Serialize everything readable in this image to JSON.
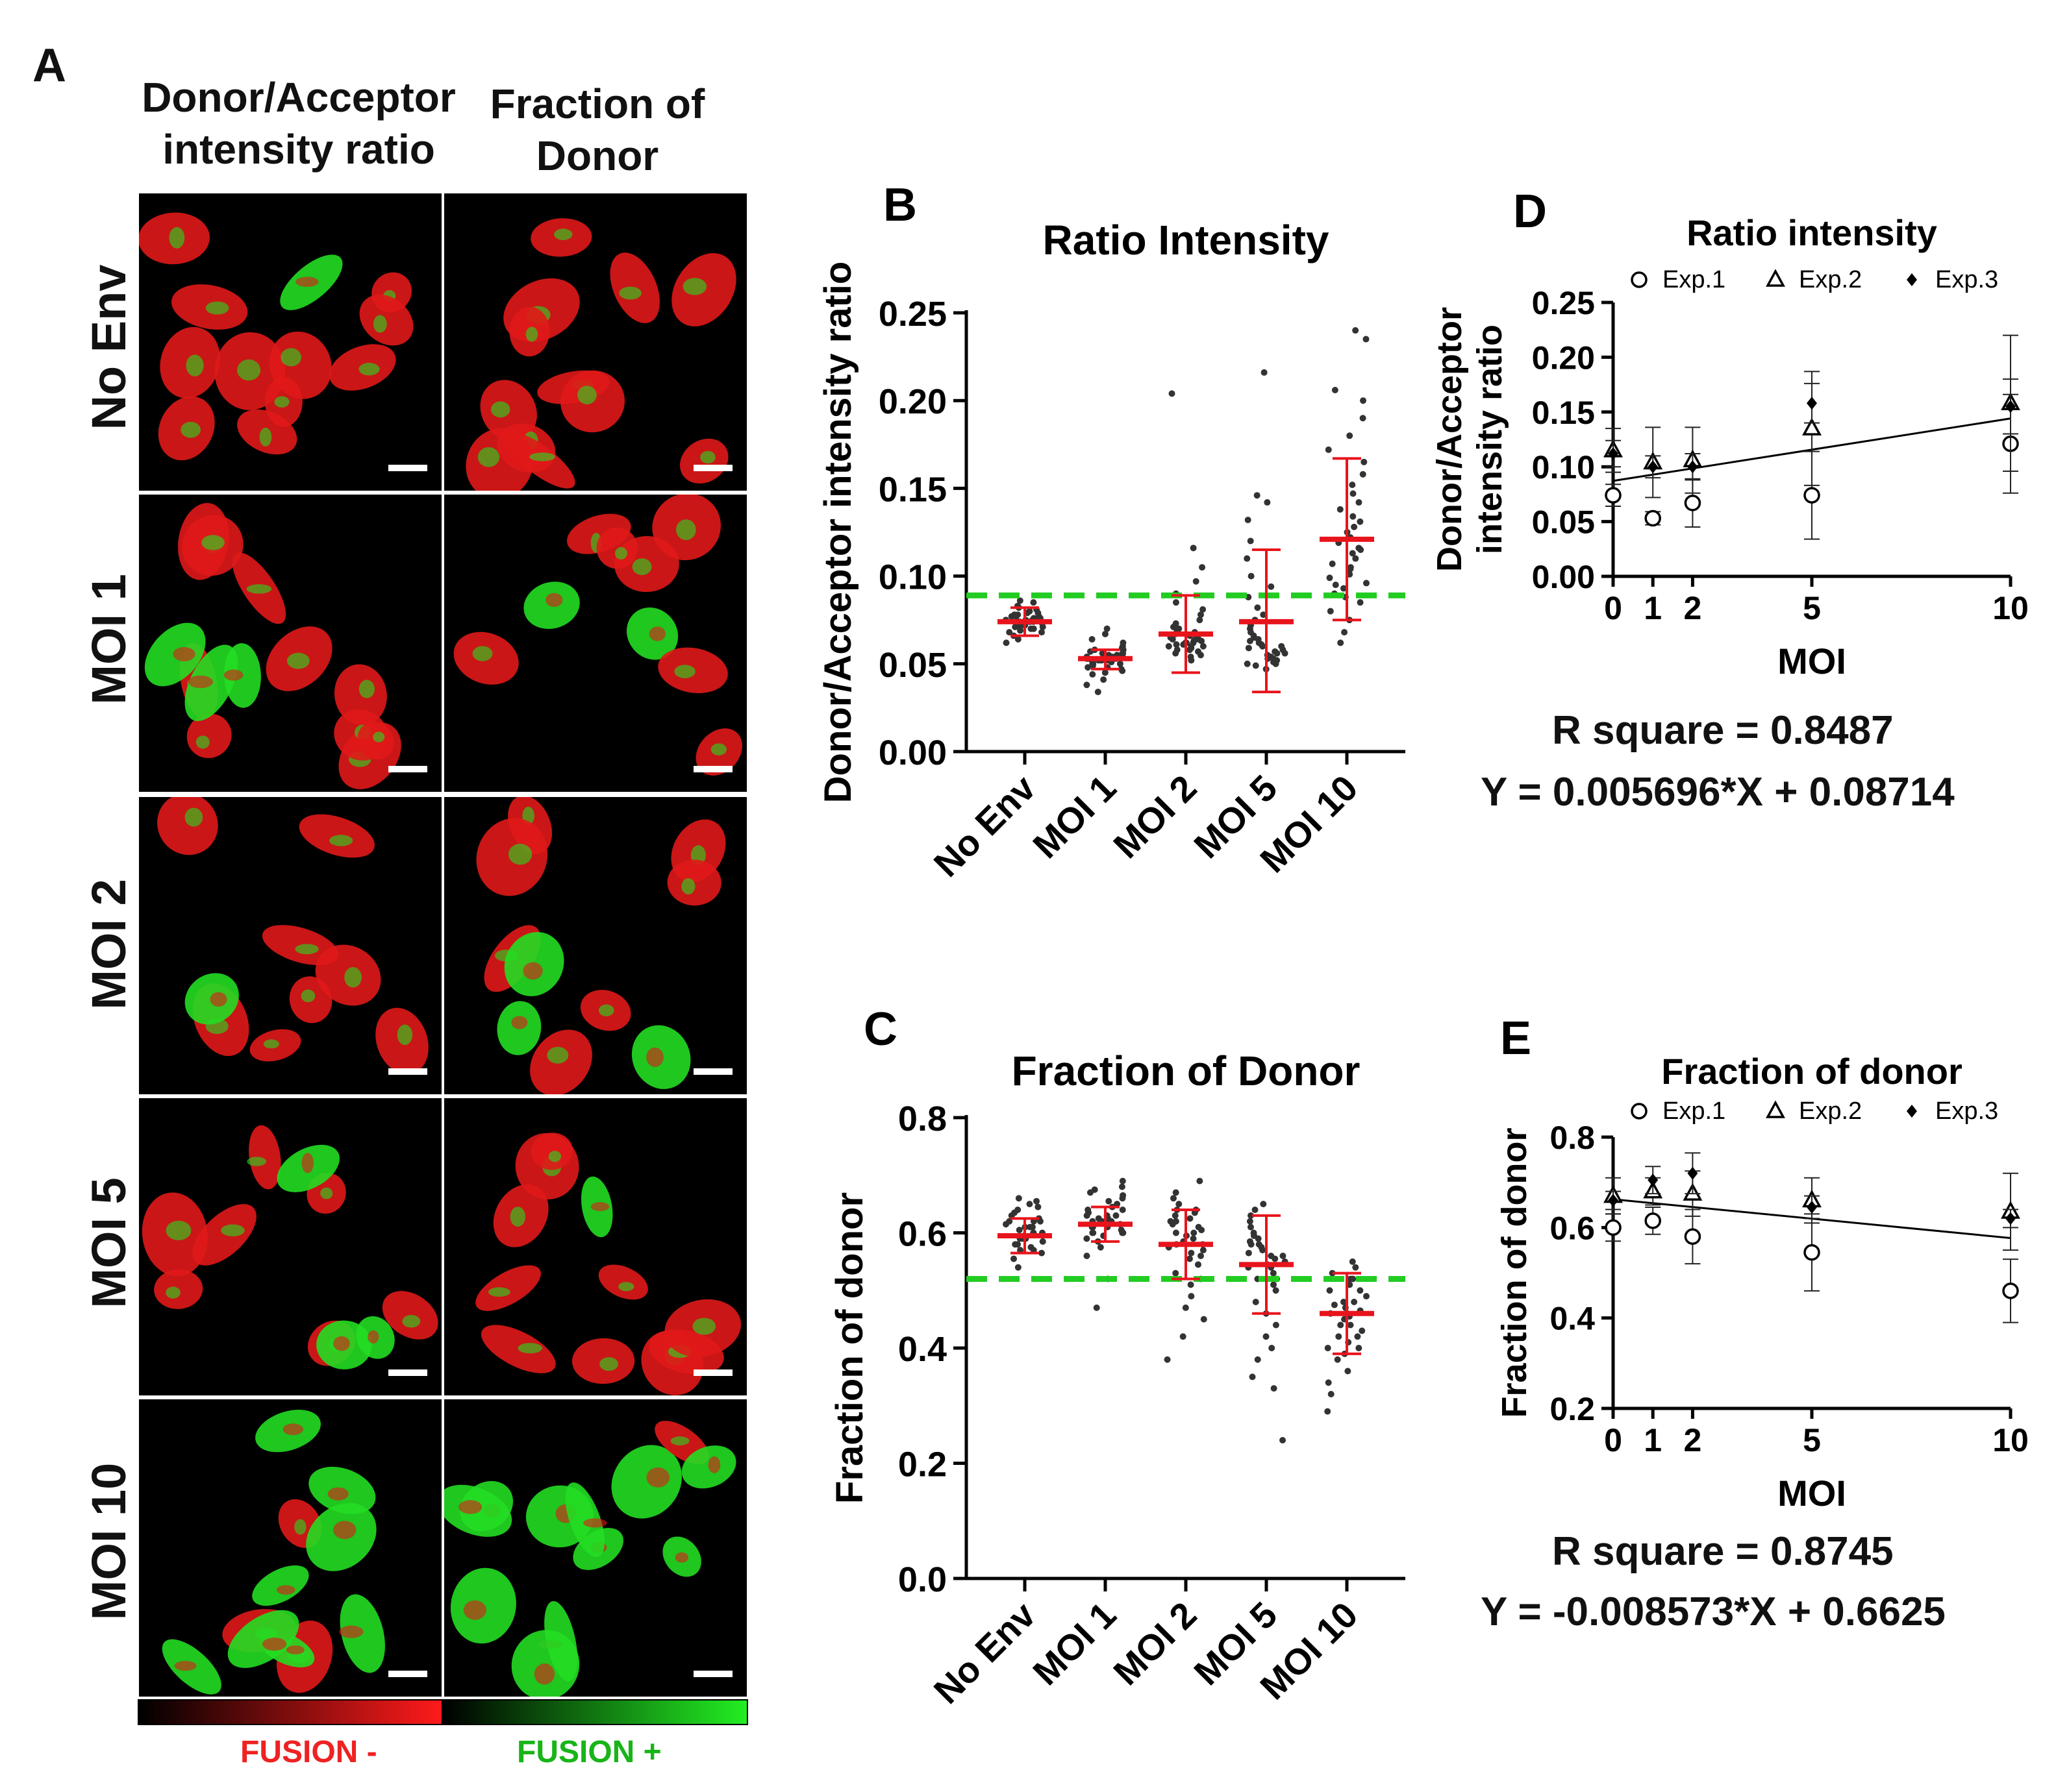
{
  "panel_a": {
    "letter": "A",
    "col_headers": [
      "Donor/Acceptor intensity ratio",
      "Fraction of Donor"
    ],
    "row_labels": [
      "No Env",
      "MOI 1",
      "MOI 2",
      "MOI 5",
      "MOI 10"
    ],
    "colorbar": {
      "left_label": "FUSION -",
      "right_label": "FUSION +",
      "left_color": "#ff2a2a",
      "right_color": "#19c41e"
    }
  },
  "colors": {
    "red_cell": "#e01818",
    "green_cell": "#22dd22",
    "error_bar": "#e8141c",
    "threshold": "#22cc22",
    "dots": "#333333"
  },
  "chart_data": [
    {
      "id": "B",
      "letter": "B",
      "type": "scatter",
      "title": "Ratio Intensity",
      "ylabel": "Donor/Acceptor intensity ratio",
      "categories": [
        "No Env",
        "MOI 1",
        "MOI 2",
        "MOI 5",
        "MOI 10"
      ],
      "ylim": [
        0,
        0.25
      ],
      "yticks": [
        "0.00",
        "0.05",
        "0.10",
        "0.15",
        "0.20",
        "0.25"
      ],
      "threshold": 0.089,
      "summary": [
        {
          "mean": 0.074,
          "low": 0.066,
          "high": 0.082
        },
        {
          "mean": 0.053,
          "low": 0.047,
          "high": 0.058
        },
        {
          "mean": 0.067,
          "low": 0.045,
          "high": 0.089
        },
        {
          "mean": 0.074,
          "low": 0.034,
          "high": 0.115
        },
        {
          "mean": 0.121,
          "low": 0.075,
          "high": 0.167
        }
      ],
      "points": [
        [
          0.064,
          0.066,
          0.068,
          0.069,
          0.07,
          0.071,
          0.071,
          0.072,
          0.072,
          0.073,
          0.073,
          0.074,
          0.074,
          0.074,
          0.075,
          0.075,
          0.076,
          0.076,
          0.077,
          0.077,
          0.078,
          0.078,
          0.079,
          0.08,
          0.081,
          0.082,
          0.083,
          0.085,
          0.068,
          0.07,
          0.072,
          0.075,
          0.077,
          0.079,
          0.062,
          0.086
        ],
        [
          0.034,
          0.038,
          0.041,
          0.044,
          0.046,
          0.047,
          0.048,
          0.049,
          0.05,
          0.05,
          0.051,
          0.051,
          0.052,
          0.052,
          0.053,
          0.053,
          0.053,
          0.054,
          0.054,
          0.055,
          0.055,
          0.056,
          0.056,
          0.057,
          0.058,
          0.059,
          0.06,
          0.062,
          0.064,
          0.067,
          0.07,
          0.048,
          0.05,
          0.052,
          0.054,
          0.056,
          0.058,
          0.045
        ],
        [
          0.052,
          0.054,
          0.055,
          0.056,
          0.057,
          0.058,
          0.059,
          0.06,
          0.06,
          0.061,
          0.061,
          0.062,
          0.062,
          0.063,
          0.063,
          0.064,
          0.064,
          0.065,
          0.066,
          0.067,
          0.068,
          0.069,
          0.07,
          0.071,
          0.073,
          0.075,
          0.078,
          0.081,
          0.085,
          0.09,
          0.097,
          0.105,
          0.116,
          0.204,
          0.058,
          0.06,
          0.062,
          0.064
        ],
        [
          0.047,
          0.049,
          0.05,
          0.051,
          0.052,
          0.053,
          0.054,
          0.055,
          0.056,
          0.057,
          0.058,
          0.059,
          0.06,
          0.061,
          0.062,
          0.063,
          0.064,
          0.065,
          0.066,
          0.068,
          0.07,
          0.072,
          0.075,
          0.078,
          0.082,
          0.088,
          0.094,
          0.1,
          0.11,
          0.12,
          0.132,
          0.142,
          0.146,
          0.216,
          0.05,
          0.053,
          0.056,
          0.06
        ],
        [
          0.062,
          0.068,
          0.075,
          0.08,
          0.085,
          0.088,
          0.09,
          0.093,
          0.096,
          0.099,
          0.101,
          0.104,
          0.107,
          0.11,
          0.113,
          0.116,
          0.119,
          0.122,
          0.125,
          0.128,
          0.131,
          0.134,
          0.138,
          0.142,
          0.147,
          0.152,
          0.158,
          0.165,
          0.172,
          0.18,
          0.19,
          0.2,
          0.206,
          0.235,
          0.24,
          0.095,
          0.105,
          0.115
        ]
      ]
    },
    {
      "id": "C",
      "letter": "C",
      "type": "scatter",
      "title": "Fraction of Donor",
      "ylabel": "Fraction of donor",
      "categories": [
        "No Env",
        "MOI 1",
        "MOI 2",
        "MOI 5",
        "MOI 10"
      ],
      "ylim": [
        0,
        0.8
      ],
      "yticks": [
        "0.0",
        "0.2",
        "0.4",
        "0.6",
        "0.8"
      ],
      "threshold": 0.52,
      "summary": [
        {
          "mean": 0.595,
          "low": 0.565,
          "high": 0.625
        },
        {
          "mean": 0.615,
          "low": 0.585,
          "high": 0.645
        },
        {
          "mean": 0.58,
          "low": 0.52,
          "high": 0.64
        },
        {
          "mean": 0.545,
          "low": 0.46,
          "high": 0.63
        },
        {
          "mean": 0.46,
          "low": 0.39,
          "high": 0.53
        }
      ],
      "points": [
        [
          0.54,
          0.555,
          0.565,
          0.57,
          0.575,
          0.58,
          0.585,
          0.59,
          0.59,
          0.595,
          0.6,
          0.6,
          0.605,
          0.61,
          0.61,
          0.615,
          0.62,
          0.62,
          0.625,
          0.63,
          0.635,
          0.64,
          0.645,
          0.65,
          0.655,
          0.66,
          0.58,
          0.6,
          0.62,
          0.57,
          0.61,
          0.59
        ],
        [
          0.47,
          0.52,
          0.56,
          0.575,
          0.585,
          0.59,
          0.595,
          0.6,
          0.6,
          0.605,
          0.61,
          0.61,
          0.615,
          0.615,
          0.62,
          0.62,
          0.625,
          0.625,
          0.63,
          0.63,
          0.635,
          0.64,
          0.645,
          0.65,
          0.655,
          0.66,
          0.665,
          0.67,
          0.675,
          0.68,
          0.69,
          0.6,
          0.61,
          0.62,
          0.63,
          0.64,
          0.6,
          0.62
        ],
        [
          0.38,
          0.42,
          0.45,
          0.47,
          0.49,
          0.51,
          0.52,
          0.53,
          0.545,
          0.555,
          0.565,
          0.57,
          0.575,
          0.58,
          0.585,
          0.59,
          0.595,
          0.6,
          0.605,
          0.61,
          0.615,
          0.62,
          0.625,
          0.63,
          0.635,
          0.64,
          0.65,
          0.66,
          0.67,
          0.69,
          0.56,
          0.58,
          0.6,
          0.62,
          0.64
        ],
        [
          0.24,
          0.33,
          0.35,
          0.38,
          0.4,
          0.42,
          0.44,
          0.46,
          0.48,
          0.5,
          0.51,
          0.52,
          0.53,
          0.54,
          0.545,
          0.55,
          0.555,
          0.56,
          0.565,
          0.57,
          0.575,
          0.58,
          0.585,
          0.59,
          0.595,
          0.6,
          0.61,
          0.62,
          0.63,
          0.64,
          0.65,
          0.52,
          0.54,
          0.56,
          0.58
        ],
        [
          0.29,
          0.32,
          0.34,
          0.36,
          0.38,
          0.39,
          0.4,
          0.41,
          0.42,
          0.43,
          0.44,
          0.45,
          0.455,
          0.46,
          0.465,
          0.47,
          0.475,
          0.48,
          0.49,
          0.5,
          0.51,
          0.52,
          0.53,
          0.54,
          0.55,
          0.4,
          0.42,
          0.44,
          0.46,
          0.48,
          0.5,
          0.52
        ]
      ]
    },
    {
      "id": "D",
      "letter": "D",
      "type": "scatter",
      "title": "Ratio intensity",
      "ylabel": "Donor/Acceptor intensity ratio",
      "xlabel": "MOI",
      "xticks": [
        0,
        1,
        2,
        5,
        10
      ],
      "xlim": [
        0,
        10
      ],
      "ylim": [
        0,
        0.25
      ],
      "yticks": [
        "0.00",
        "0.05",
        "0.10",
        "0.15",
        "0.20",
        "0.25"
      ],
      "legend": [
        "Exp.1",
        "Exp.2",
        "Exp.3"
      ],
      "series": [
        {
          "name": "Exp.1",
          "marker": "circle",
          "x": [
            0,
            1,
            2,
            5,
            10
          ],
          "y": [
            0.074,
            0.053,
            0.067,
            0.074,
            0.121
          ],
          "err": [
            0.01,
            0.006,
            0.022,
            0.04,
            0.045
          ]
        },
        {
          "name": "Exp.2",
          "marker": "triangle",
          "x": [
            0,
            1,
            2,
            5,
            10
          ],
          "y": [
            0.115,
            0.104,
            0.106,
            0.135,
            0.158
          ],
          "err": [
            0.02,
            0.032,
            0.03,
            0.052,
            0.062
          ]
        },
        {
          "name": "Exp.3",
          "marker": "diamond",
          "x": [
            0,
            1,
            2,
            5,
            10
          ],
          "y": [
            0.112,
            0.1,
            0.1,
            0.158,
            0.155
          ],
          "err": [
            0.012,
            0.01,
            0.012,
            0.018,
            0.025
          ]
        }
      ],
      "fit": {
        "slope": 0.005696,
        "intercept": 0.08714
      },
      "r_square": "R square = 0.8487",
      "equation": "Y = 0.005696*X + 0.08714"
    },
    {
      "id": "E",
      "letter": "E",
      "type": "scatter",
      "title": "Fraction of donor",
      "ylabel": "Fraction of donor",
      "xlabel": "MOI",
      "xticks": [
        0,
        1,
        2,
        5,
        10
      ],
      "xlim": [
        0,
        10
      ],
      "ylim": [
        0.2,
        0.8
      ],
      "yticks": [
        "0.2",
        "0.4",
        "0.6",
        "0.8"
      ],
      "legend": [
        "Exp.1",
        "Exp.2",
        "Exp.3"
      ],
      "series": [
        {
          "name": "Exp.1",
          "marker": "circle",
          "x": [
            0,
            1,
            2,
            5,
            10
          ],
          "y": [
            0.6,
            0.615,
            0.58,
            0.545,
            0.46
          ],
          "err": [
            0.03,
            0.03,
            0.06,
            0.085,
            0.07
          ]
        },
        {
          "name": "Exp.2",
          "marker": "triangle",
          "x": [
            0,
            1,
            2,
            5,
            10
          ],
          "y": [
            0.67,
            0.68,
            0.675,
            0.66,
            0.635
          ],
          "err": [
            0.04,
            0.03,
            0.05,
            0.05,
            0.085
          ]
        },
        {
          "name": "Exp.3",
          "marker": "diamond",
          "x": [
            0,
            1,
            2,
            5,
            10
          ],
          "y": [
            0.66,
            0.705,
            0.72,
            0.645,
            0.62
          ],
          "err": [
            0.02,
            0.03,
            0.045,
            0.025,
            0.02
          ]
        }
      ],
      "fit": {
        "slope": -0.008573,
        "intercept": 0.6625
      },
      "r_square": "R square = 0.8745",
      "equation": "Y = -0.008573*X + 0.6625"
    }
  ]
}
